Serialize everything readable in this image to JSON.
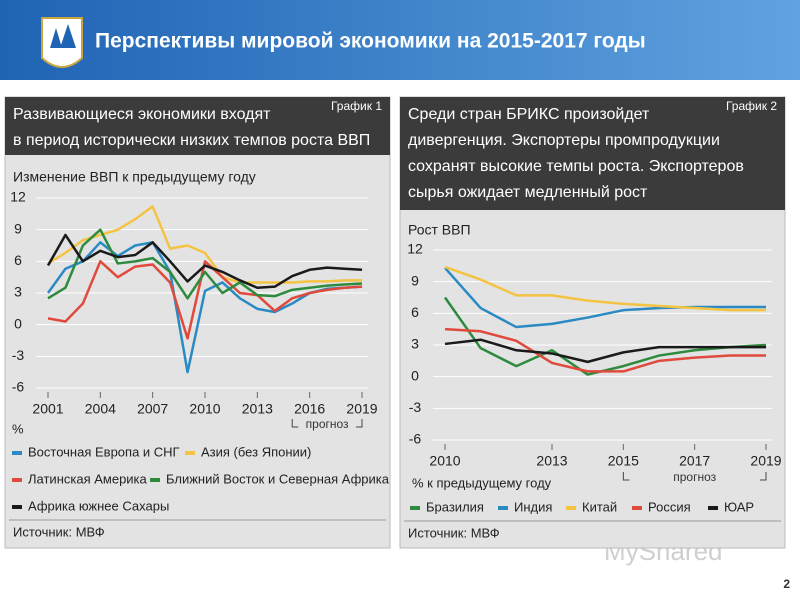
{
  "slide": {
    "title": "Перспективы мировой экономики на 2015-2017 годы",
    "page_number": "2",
    "watermark": "MyShared"
  },
  "chart_data": [
    {
      "type": "line",
      "label": "График 1",
      "heading": [
        "Развивающиеся экономики входят",
        "в период исторически низких темпов роста ВВП"
      ],
      "y_label": "Изменение ВВП к предыдущему году",
      "unit": "%",
      "forecast_label": "прогноз",
      "source": "Источник: МВФ",
      "x": [
        2001,
        2002,
        2003,
        2004,
        2005,
        2006,
        2007,
        2008,
        2009,
        2010,
        2011,
        2012,
        2013,
        2014,
        2015,
        2016,
        2017,
        2018,
        2019
      ],
      "xlim": [
        2001,
        2019
      ],
      "xticks": [
        2001,
        2004,
        2007,
        2010,
        2013,
        2016,
        2019
      ],
      "ylim": [
        -6,
        12
      ],
      "yticks": [
        12,
        9,
        6,
        3,
        0,
        -3,
        -6
      ],
      "grid": true,
      "series": [
        {
          "name": "Восточная Европа и СНГ",
          "color": "#2a8ac4",
          "values": [
            3,
            5.3,
            6,
            7.8,
            6.5,
            7.5,
            7.8,
            5,
            -4.5,
            3.2,
            4,
            2.5,
            1.5,
            1.2,
            2,
            3,
            3.4,
            3.5,
            3.6
          ]
        },
        {
          "name": "Азия (без Японии)",
          "color": "#f5c342",
          "values": [
            5.8,
            6.8,
            8,
            8.5,
            9,
            10,
            11.2,
            7.2,
            7.5,
            6.8,
            4.5,
            4,
            4,
            4,
            4,
            4.1,
            4.1,
            4.2,
            4.2
          ]
        },
        {
          "name": "Латинская Америка",
          "color": "#e04a3c",
          "values": [
            0.6,
            0.3,
            2,
            6,
            4.5,
            5.5,
            5.7,
            4,
            -1.3,
            6,
            4.5,
            3,
            2.8,
            1.3,
            2.5,
            3,
            3.3,
            3.5,
            3.6
          ]
        },
        {
          "name": "Ближний Восток и Северная Африка",
          "color": "#2e8b3d",
          "values": [
            2.5,
            3.5,
            7.5,
            9,
            5.8,
            6,
            6.3,
            5,
            2.5,
            5,
            3,
            4,
            2.8,
            2.7,
            3.3,
            3.5,
            3.7,
            3.8,
            3.9
          ]
        },
        {
          "name": "Африка южнее Сахары",
          "color": "#1a1a1a",
          "values": [
            5.6,
            8.5,
            6,
            7,
            6.4,
            6.6,
            7.8,
            6,
            4.1,
            5.6,
            5,
            4.2,
            3.5,
            3.6,
            4.6,
            5.2,
            5.4,
            5.3,
            5.2
          ]
        }
      ]
    },
    {
      "type": "line",
      "label": "График 2",
      "heading": [
        "Среди стран БРИКС произойдет",
        "дивергенция. Экспортеры промпродукции",
        "сохранят высокие темпы роста. Экспортеров",
        "сырья ожидает медленный рост"
      ],
      "y_label": "Рост ВВП",
      "unit": "% к предыдущему году",
      "forecast_label": "прогноз",
      "source": "Источник: МВФ",
      "x": [
        2010,
        2011,
        2012,
        2013,
        2014,
        2015,
        2016,
        2017,
        2018,
        2019
      ],
      "xlim": [
        2010,
        2019
      ],
      "xticks": [
        2010,
        2013,
        2015,
        2017,
        2019
      ],
      "ylim": [
        -6,
        12
      ],
      "yticks": [
        12,
        9,
        6,
        3,
        0,
        -3,
        -6
      ],
      "grid": true,
      "series": [
        {
          "name": "Бразилия",
          "color": "#2e8b3d",
          "values": [
            7.5,
            2.7,
            1,
            2.5,
            0.2,
            1,
            2,
            2.5,
            2.8,
            3
          ]
        },
        {
          "name": "Индия",
          "color": "#2a8ac4",
          "values": [
            10.3,
            6.5,
            4.7,
            5,
            5.6,
            6.3,
            6.5,
            6.6,
            6.6,
            6.6
          ]
        },
        {
          "name": "Китай",
          "color": "#f5c342",
          "values": [
            10.4,
            9.2,
            7.7,
            7.7,
            7.2,
            6.9,
            6.7,
            6.5,
            6.3,
            6.3
          ]
        },
        {
          "name": "Россия",
          "color": "#e04a3c",
          "values": [
            4.5,
            4.3,
            3.4,
            1.3,
            0.5,
            0.5,
            1.5,
            1.8,
            2,
            2
          ]
        },
        {
          "name": "ЮАР",
          "color": "#1a1a1a",
          "values": [
            3.1,
            3.5,
            2.5,
            2.2,
            1.4,
            2.3,
            2.8,
            2.8,
            2.8,
            2.8
          ]
        }
      ]
    }
  ]
}
